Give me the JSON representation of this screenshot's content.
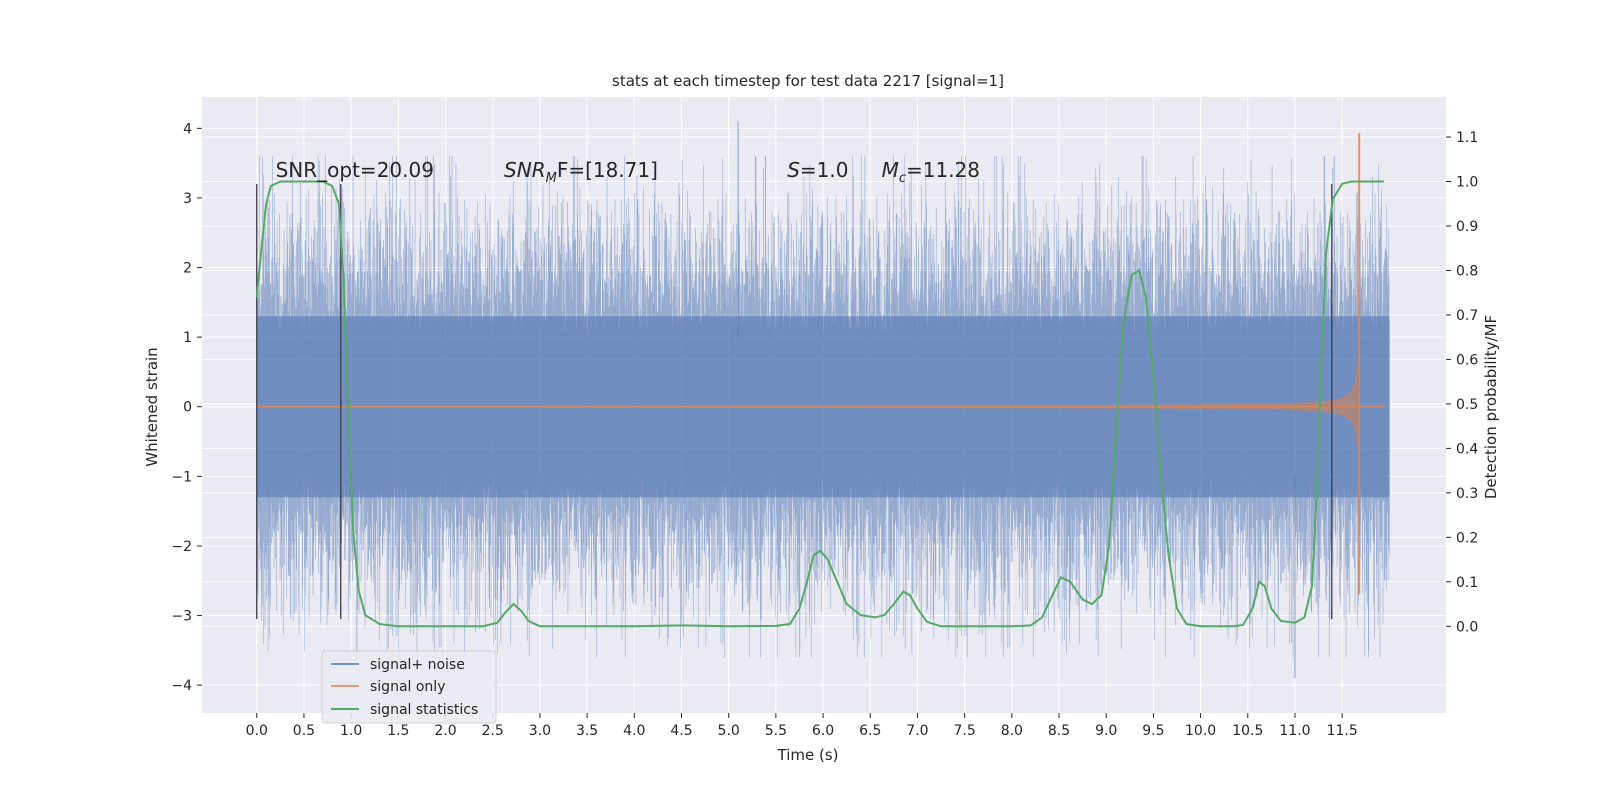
{
  "chart_data": {
    "type": "line",
    "title": "stats at each timestep for test data 2217 [signal=1]",
    "xlabel": "Time (s)",
    "ylabel_left": "Whitened strain",
    "ylabel_right": "Detection probability/MF",
    "xlim": [
      -0.58,
      12.6
    ],
    "ylim_left": [
      -4.4,
      4.45
    ],
    "ylim_right": [
      -0.195,
      1.19
    ],
    "grid": true,
    "legend_position": "lower-left",
    "x_ticks": [
      "0.0",
      "0.5",
      "1.0",
      "1.5",
      "2.0",
      "2.5",
      "3.0",
      "3.5",
      "4.0",
      "4.5",
      "5.0",
      "5.5",
      "6.0",
      "6.5",
      "7.0",
      "7.5",
      "8.0",
      "8.5",
      "9.0",
      "9.5",
      "10.0",
      "10.5",
      "11.0",
      "11.5"
    ],
    "y_ticks_left": [
      "4",
      "3",
      "2",
      "1",
      "0",
      "−1",
      "−2",
      "−3",
      "−4"
    ],
    "y_ticks_right": [
      "1.1",
      "1.0",
      "0.9",
      "0.8",
      "0.7",
      "0.6",
      "0.5",
      "0.4",
      "0.3",
      "0.2",
      "0.1",
      "0.0"
    ],
    "annotations": {
      "snr_opt": {
        "x": 0.2,
        "y": 3.3,
        "text": "SNR_opt=20.09"
      },
      "snr_mf": {
        "x": 2.62,
        "y": 3.3,
        "main": "SNR",
        "sub": "M",
        "rest": "F=[18.71]"
      },
      "s_value": {
        "x": 5.62,
        "y": 3.3,
        "main": "S",
        "rest": "=1.0"
      },
      "mc_value": {
        "x": 6.62,
        "y": 3.3,
        "main": "M",
        "sub": "c",
        "rest": "=11.28"
      }
    },
    "vertical_markers": [
      0.0,
      0.89,
      11.39
    ],
    "marker_range": [
      -3.05,
      3.2
    ],
    "series": [
      {
        "name": "signal+ noise",
        "color": "#4c72b0",
        "axis": "left",
        "t_range": [
          0.0,
          12.0
        ],
        "envelope": {
          "mean_abs": 1.0,
          "peak_max": 4.1,
          "peak_min": -3.9
        }
      },
      {
        "name": "signal only",
        "color": "#dd8452",
        "axis": "left",
        "t_range": [
          0.0,
          11.7
        ],
        "merger_time": 11.68,
        "peak_max": 3.93,
        "peak_min": -2.7
      },
      {
        "name": "signal statistics",
        "color": "#55a868",
        "axis": "right",
        "points": [
          [
            0.0,
            0.74
          ],
          [
            0.05,
            0.85
          ],
          [
            0.1,
            0.95
          ],
          [
            0.15,
            0.99
          ],
          [
            0.25,
            1.0
          ],
          [
            0.5,
            1.0
          ],
          [
            0.7,
            1.0
          ],
          [
            0.8,
            0.99
          ],
          [
            0.87,
            0.95
          ],
          [
            0.92,
            0.78
          ],
          [
            0.97,
            0.48
          ],
          [
            1.02,
            0.22
          ],
          [
            1.08,
            0.08
          ],
          [
            1.15,
            0.025
          ],
          [
            1.3,
            0.005
          ],
          [
            1.5,
            0.0
          ],
          [
            2.0,
            0.0
          ],
          [
            2.4,
            0.0
          ],
          [
            2.55,
            0.008
          ],
          [
            2.63,
            0.03
          ],
          [
            2.72,
            0.05
          ],
          [
            2.8,
            0.035
          ],
          [
            2.88,
            0.012
          ],
          [
            3.0,
            0.0
          ],
          [
            4.0,
            0.0
          ],
          [
            4.5,
            0.002
          ],
          [
            5.0,
            0.0
          ],
          [
            5.5,
            0.001
          ],
          [
            5.65,
            0.005
          ],
          [
            5.75,
            0.04
          ],
          [
            5.83,
            0.1
          ],
          [
            5.9,
            0.16
          ],
          [
            5.97,
            0.17
          ],
          [
            6.05,
            0.15
          ],
          [
            6.15,
            0.1
          ],
          [
            6.25,
            0.05
          ],
          [
            6.4,
            0.025
          ],
          [
            6.55,
            0.02
          ],
          [
            6.65,
            0.025
          ],
          [
            6.75,
            0.05
          ],
          [
            6.85,
            0.078
          ],
          [
            6.92,
            0.07
          ],
          [
            7.0,
            0.04
          ],
          [
            7.1,
            0.01
          ],
          [
            7.25,
            0.0
          ],
          [
            8.0,
            0.0
          ],
          [
            8.2,
            0.002
          ],
          [
            8.32,
            0.02
          ],
          [
            8.43,
            0.07
          ],
          [
            8.52,
            0.11
          ],
          [
            8.62,
            0.1
          ],
          [
            8.75,
            0.06
          ],
          [
            8.85,
            0.05
          ],
          [
            8.95,
            0.07
          ],
          [
            9.03,
            0.18
          ],
          [
            9.1,
            0.42
          ],
          [
            9.18,
            0.68
          ],
          [
            9.27,
            0.79
          ],
          [
            9.35,
            0.8
          ],
          [
            9.42,
            0.74
          ],
          [
            9.5,
            0.56
          ],
          [
            9.58,
            0.34
          ],
          [
            9.66,
            0.16
          ],
          [
            9.75,
            0.04
          ],
          [
            9.85,
            0.005
          ],
          [
            10.0,
            0.0
          ],
          [
            10.35,
            0.0
          ],
          [
            10.45,
            0.003
          ],
          [
            10.55,
            0.04
          ],
          [
            10.62,
            0.1
          ],
          [
            10.68,
            0.09
          ],
          [
            10.75,
            0.04
          ],
          [
            10.85,
            0.012
          ],
          [
            11.0,
            0.008
          ],
          [
            11.1,
            0.02
          ],
          [
            11.18,
            0.09
          ],
          [
            11.23,
            0.3
          ],
          [
            11.28,
            0.6
          ],
          [
            11.33,
            0.84
          ],
          [
            11.4,
            0.96
          ],
          [
            11.5,
            0.995
          ],
          [
            11.6,
            1.0
          ],
          [
            11.7,
            1.0
          ],
          [
            11.94,
            1.0
          ]
        ]
      }
    ]
  }
}
